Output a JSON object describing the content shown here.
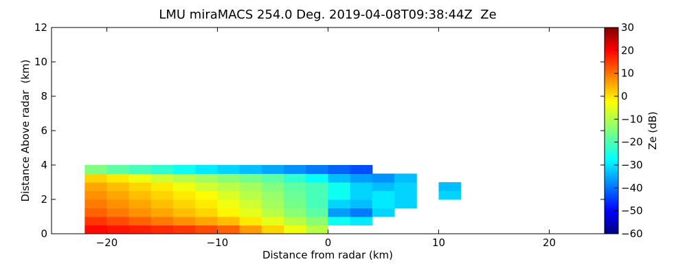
{
  "chart_data": {
    "type": "heatmap",
    "title": "LMU miraMACS 254.0 Deg. 2019-04-08T09:38:44Z  Ze",
    "x_label": "Distance from radar (km)",
    "y_label": "Distance Above radar  (km)",
    "colorbar_label": "Ze (dB)",
    "colormap": "jet",
    "xlim": [
      -25,
      25
    ],
    "ylim": [
      0,
      12
    ],
    "clim": [
      -60,
      30
    ],
    "xticks": [
      {
        "value": -20,
        "label": "−20"
      },
      {
        "value": -10,
        "label": "−10"
      },
      0,
      10,
      20
    ],
    "yticks": [
      0,
      2,
      4,
      6,
      8,
      10,
      12
    ],
    "cticks": [
      {
        "value": -60,
        "label": "−60"
      },
      {
        "value": -50,
        "label": "−50"
      },
      {
        "value": -40,
        "label": "−40"
      },
      {
        "value": -30,
        "label": "−30"
      },
      {
        "value": -20,
        "label": "−20"
      },
      {
        "value": -10,
        "label": "−10"
      },
      0,
      10,
      20,
      30
    ],
    "x_edges": [
      -22,
      -20,
      -18,
      -16,
      -14,
      -12,
      -10,
      -8,
      -6,
      -4,
      -2,
      0,
      2,
      4,
      6,
      8,
      10,
      12
    ],
    "y_edges": [
      0,
      0.5,
      1,
      1.5,
      2,
      2.5,
      3,
      3.5,
      4
    ],
    "values": [
      [
        18,
        17,
        16,
        15,
        14,
        12,
        10,
        5,
        0,
        -5,
        -10,
        null,
        null,
        null,
        null,
        null,
        null
      ],
      [
        14,
        12,
        10,
        8,
        6,
        4,
        2,
        -2,
        -6,
        -10,
        -14,
        -25,
        -28,
        null,
        null,
        null,
        null
      ],
      [
        10,
        8,
        6,
        4,
        2,
        0,
        -3,
        -6,
        -10,
        -14,
        -18,
        -35,
        -38,
        -30,
        null,
        null,
        null
      ],
      [
        8,
        6,
        4,
        2,
        0,
        -2,
        -5,
        -8,
        -12,
        -16,
        -20,
        -30,
        -32,
        -28,
        -30,
        null,
        null
      ],
      [
        6,
        4,
        2,
        0,
        -2,
        -4,
        -7,
        -10,
        -13,
        -17,
        -20,
        -25,
        -30,
        -28,
        -30,
        null,
        -30
      ],
      [
        4,
        2,
        0,
        -2,
        -5,
        -8,
        -10,
        -12,
        -15,
        -18,
        -20,
        -25,
        -30,
        -32,
        -30,
        null,
        -32
      ],
      [
        0,
        -2,
        -5,
        -8,
        -10,
        -12,
        -14,
        -16,
        -18,
        -22,
        -26,
        -32,
        -35,
        -36,
        -32,
        null,
        null
      ],
      [
        -15,
        -18,
        -20,
        -22,
        -25,
        -28,
        -30,
        -32,
        -34,
        -36,
        -38,
        -40,
        -42,
        null,
        null,
        null,
        null
      ]
    ]
  }
}
